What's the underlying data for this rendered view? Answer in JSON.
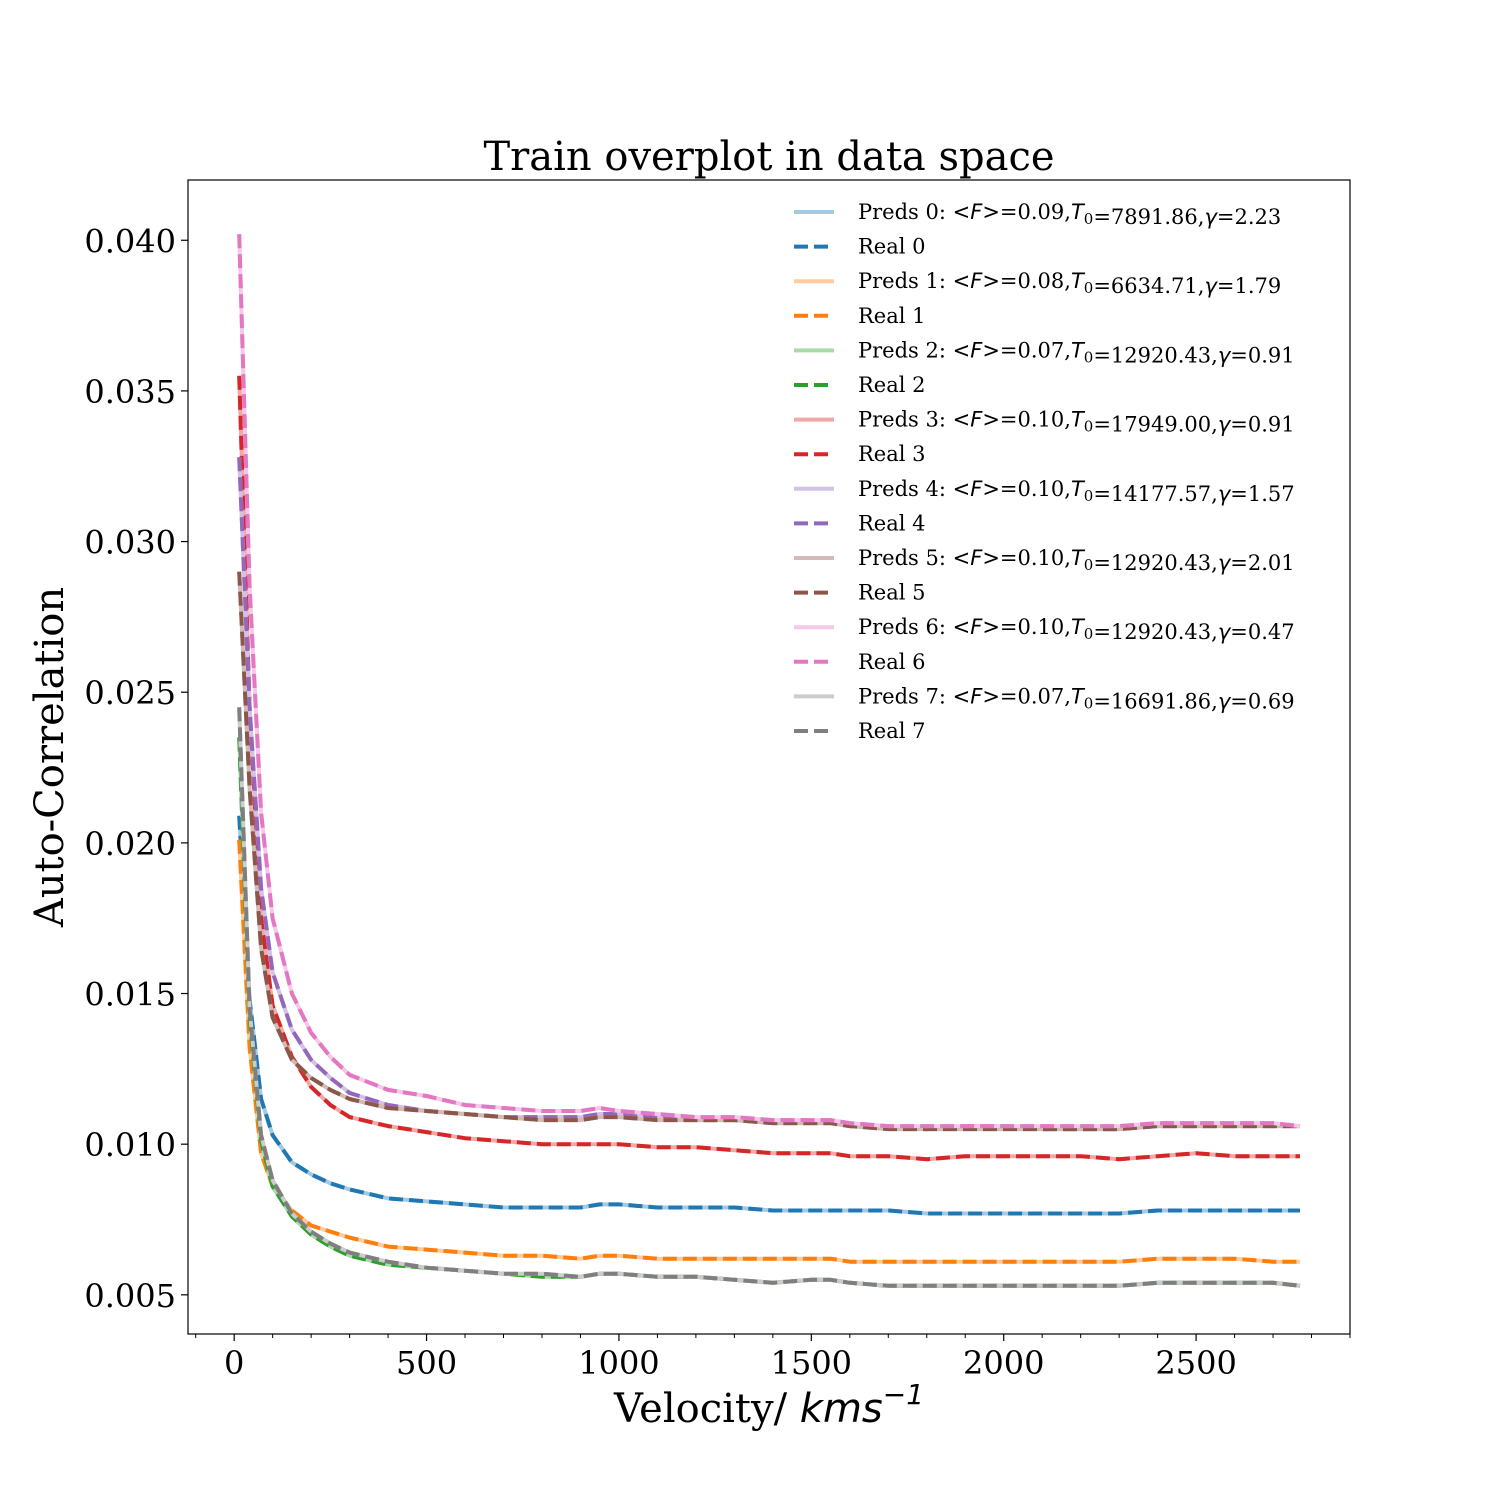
{
  "chart_data": {
    "type": "line",
    "title": "Train overplot in data space",
    "xlabel": "Velocity/ ",
    "xlabel_math": "kms",
    "xlabel_sup": "−1",
    "ylabel": "Auto-Correlation",
    "xlim": [
      -120,
      2900
    ],
    "ylim": [
      0.0037,
      0.042
    ],
    "x_ticks": [
      0,
      500,
      1000,
      1500,
      2000,
      2500
    ],
    "x_tick_labels": [
      "0",
      "500",
      "1000",
      "1500",
      "2000",
      "2500"
    ],
    "y_ticks": [
      0.005,
      0.01,
      0.015,
      0.02,
      0.025,
      0.03,
      0.035,
      0.04
    ],
    "y_tick_labels": [
      "0.005",
      "0.010",
      "0.015",
      "0.020",
      "0.025",
      "0.030",
      "0.035",
      "0.040"
    ],
    "x": [
      13,
      40,
      70,
      100,
      150,
      200,
      250,
      300,
      400,
      500,
      600,
      700,
      800,
      900,
      950,
      1000,
      1100,
      1200,
      1300,
      1400,
      1500,
      1550,
      1600,
      1700,
      1800,
      1900,
      2000,
      2100,
      2200,
      2300,
      2400,
      2500,
      2600,
      2700,
      2770
    ],
    "legend_position": "upper right",
    "grid": false,
    "series": [
      {
        "name": "Preds 0",
        "label_math": "F",
        "mean_flux": "0.09",
        "T0": "7891.86",
        "gamma": "2.23",
        "style": "pred",
        "color": "#1f77b4",
        "values": [
          0.0209,
          0.0148,
          0.0115,
          0.0103,
          0.0094,
          0.009,
          0.0087,
          0.0085,
          0.0082,
          0.0081,
          0.008,
          0.0079,
          0.0079,
          0.0079,
          0.008,
          0.008,
          0.0079,
          0.0079,
          0.0079,
          0.0078,
          0.0078,
          0.0078,
          0.0078,
          0.0078,
          0.0077,
          0.0077,
          0.0077,
          0.0077,
          0.0077,
          0.0077,
          0.0078,
          0.0078,
          0.0078,
          0.0078,
          0.0078
        ]
      },
      {
        "name": "Real 0",
        "style": "real",
        "color": "#1f77b4",
        "values": [
          0.0209,
          0.0148,
          0.0115,
          0.0103,
          0.0094,
          0.009,
          0.0087,
          0.0085,
          0.0082,
          0.0081,
          0.008,
          0.0079,
          0.0079,
          0.0079,
          0.008,
          0.008,
          0.0079,
          0.0079,
          0.0079,
          0.0078,
          0.0078,
          0.0078,
          0.0078,
          0.0078,
          0.0077,
          0.0077,
          0.0077,
          0.0077,
          0.0077,
          0.0077,
          0.0078,
          0.0078,
          0.0078,
          0.0078,
          0.0078
        ]
      },
      {
        "name": "Preds 1",
        "label_math": "F",
        "mean_flux": "0.08",
        "T0": "6634.71",
        "gamma": "1.79",
        "style": "pred",
        "color": "#ff7f0e",
        "values": [
          0.0201,
          0.0132,
          0.0097,
          0.0086,
          0.0078,
          0.0073,
          0.0071,
          0.0069,
          0.0066,
          0.0065,
          0.0064,
          0.0063,
          0.0063,
          0.0062,
          0.0063,
          0.0063,
          0.0062,
          0.0062,
          0.0062,
          0.0062,
          0.0062,
          0.0062,
          0.0061,
          0.0061,
          0.0061,
          0.0061,
          0.0061,
          0.0061,
          0.0061,
          0.0061,
          0.0062,
          0.0062,
          0.0062,
          0.0061,
          0.0061
        ]
      },
      {
        "name": "Real 1",
        "style": "real",
        "color": "#ff7f0e",
        "values": [
          0.0201,
          0.0132,
          0.0097,
          0.0086,
          0.0078,
          0.0073,
          0.0071,
          0.0069,
          0.0066,
          0.0065,
          0.0064,
          0.0063,
          0.0063,
          0.0062,
          0.0063,
          0.0063,
          0.0062,
          0.0062,
          0.0062,
          0.0062,
          0.0062,
          0.0062,
          0.0061,
          0.0061,
          0.0061,
          0.0061,
          0.0061,
          0.0061,
          0.0061,
          0.0061,
          0.0062,
          0.0062,
          0.0062,
          0.0061,
          0.0061
        ]
      },
      {
        "name": "Preds 2",
        "label_math": "F",
        "mean_flux": "0.07",
        "T0": "12920.43",
        "gamma": "0.91",
        "style": "pred",
        "color": "#2ca02c",
        "values": [
          0.0235,
          0.0142,
          0.0101,
          0.0086,
          0.0076,
          0.007,
          0.0066,
          0.0063,
          0.006,
          0.0059,
          0.0058,
          0.0057,
          0.0056,
          0.0056,
          0.0057,
          0.0057,
          0.0056,
          0.0056,
          0.0055,
          0.0054,
          0.0055,
          0.0055,
          0.0054,
          0.0053,
          0.0053,
          0.0053,
          0.0053,
          0.0053,
          0.0053,
          0.0053,
          0.0054,
          0.0054,
          0.0054,
          0.0054,
          0.0053
        ]
      },
      {
        "name": "Real 2",
        "style": "real",
        "color": "#2ca02c",
        "values": [
          0.0235,
          0.0142,
          0.0101,
          0.0086,
          0.0076,
          0.007,
          0.0066,
          0.0063,
          0.006,
          0.0059,
          0.0058,
          0.0057,
          0.0056,
          0.0056,
          0.0057,
          0.0057,
          0.0056,
          0.0056,
          0.0055,
          0.0054,
          0.0055,
          0.0055,
          0.0054,
          0.0053,
          0.0053,
          0.0053,
          0.0053,
          0.0053,
          0.0053,
          0.0053,
          0.0054,
          0.0054,
          0.0054,
          0.0054,
          0.0053
        ]
      },
      {
        "name": "Preds 3",
        "label_math": "F",
        "mean_flux": "0.10",
        "T0": "17949.00",
        "gamma": "0.91",
        "style": "pred",
        "color": "#d62728",
        "values": [
          0.0355,
          0.0245,
          0.0175,
          0.0146,
          0.0129,
          0.0119,
          0.0113,
          0.0109,
          0.0106,
          0.0104,
          0.0102,
          0.0101,
          0.01,
          0.01,
          0.01,
          0.01,
          0.0099,
          0.0099,
          0.0098,
          0.0097,
          0.0097,
          0.0097,
          0.0096,
          0.0096,
          0.0095,
          0.0096,
          0.0096,
          0.0096,
          0.0096,
          0.0095,
          0.0096,
          0.0097,
          0.0096,
          0.0096,
          0.0096
        ]
      },
      {
        "name": "Real 3",
        "style": "real",
        "color": "#d62728",
        "values": [
          0.0355,
          0.0245,
          0.0175,
          0.0146,
          0.0129,
          0.0119,
          0.0113,
          0.0109,
          0.0106,
          0.0104,
          0.0102,
          0.0101,
          0.01,
          0.01,
          0.01,
          0.01,
          0.0099,
          0.0099,
          0.0098,
          0.0097,
          0.0097,
          0.0097,
          0.0096,
          0.0096,
          0.0095,
          0.0096,
          0.0096,
          0.0096,
          0.0096,
          0.0095,
          0.0096,
          0.0097,
          0.0096,
          0.0096,
          0.0096
        ]
      },
      {
        "name": "Preds 4",
        "label_math": "F",
        "mean_flux": "0.10",
        "T0": "14177.57",
        "gamma": "1.57",
        "style": "pred",
        "color": "#9467bd",
        "values": [
          0.0328,
          0.0245,
          0.0185,
          0.0157,
          0.0138,
          0.0128,
          0.0122,
          0.0117,
          0.0113,
          0.0111,
          0.011,
          0.0109,
          0.0109,
          0.0109,
          0.011,
          0.011,
          0.0109,
          0.0108,
          0.0108,
          0.0107,
          0.0107,
          0.0107,
          0.0106,
          0.0106,
          0.0105,
          0.0106,
          0.0106,
          0.0105,
          0.0105,
          0.0105,
          0.0106,
          0.0106,
          0.0106,
          0.0106,
          0.0106
        ]
      },
      {
        "name": "Real 4",
        "style": "real",
        "color": "#9467bd",
        "values": [
          0.0328,
          0.0245,
          0.0185,
          0.0157,
          0.0138,
          0.0128,
          0.0122,
          0.0117,
          0.0113,
          0.0111,
          0.011,
          0.0109,
          0.0109,
          0.0109,
          0.011,
          0.011,
          0.0109,
          0.0108,
          0.0108,
          0.0107,
          0.0107,
          0.0107,
          0.0106,
          0.0106,
          0.0105,
          0.0106,
          0.0106,
          0.0105,
          0.0105,
          0.0105,
          0.0106,
          0.0106,
          0.0106,
          0.0106,
          0.0106
        ]
      },
      {
        "name": "Preds 5",
        "label_math": "F",
        "mean_flux": "0.10",
        "T0": "12920.43",
        "gamma": "2.01",
        "style": "pred",
        "color": "#8c564b",
        "values": [
          0.029,
          0.0218,
          0.0165,
          0.0142,
          0.0128,
          0.0122,
          0.0118,
          0.0115,
          0.0112,
          0.0111,
          0.011,
          0.0109,
          0.0108,
          0.0108,
          0.0109,
          0.0109,
          0.0108,
          0.0108,
          0.0108,
          0.0107,
          0.0107,
          0.0107,
          0.0106,
          0.0105,
          0.0105,
          0.0105,
          0.0105,
          0.0105,
          0.0105,
          0.0105,
          0.0106,
          0.0106,
          0.0106,
          0.0106,
          0.0106
        ]
      },
      {
        "name": "Real 5",
        "style": "real",
        "color": "#8c564b",
        "values": [
          0.029,
          0.0218,
          0.0165,
          0.0142,
          0.0128,
          0.0122,
          0.0118,
          0.0115,
          0.0112,
          0.0111,
          0.011,
          0.0109,
          0.0108,
          0.0108,
          0.0109,
          0.0109,
          0.0108,
          0.0108,
          0.0108,
          0.0107,
          0.0107,
          0.0107,
          0.0106,
          0.0105,
          0.0105,
          0.0105,
          0.0105,
          0.0105,
          0.0105,
          0.0105,
          0.0106,
          0.0106,
          0.0106,
          0.0106,
          0.0106
        ]
      },
      {
        "name": "Preds 6",
        "label_math": "F",
        "mean_flux": "0.10",
        "T0": "12920.43",
        "gamma": "0.47",
        "style": "pred",
        "color": "#e377c2",
        "values": [
          0.0402,
          0.0285,
          0.021,
          0.0175,
          0.015,
          0.0137,
          0.0129,
          0.0123,
          0.0118,
          0.0116,
          0.0113,
          0.0112,
          0.0111,
          0.0111,
          0.0112,
          0.0111,
          0.011,
          0.0109,
          0.0109,
          0.0108,
          0.0108,
          0.0108,
          0.0107,
          0.0106,
          0.0106,
          0.0106,
          0.0106,
          0.0106,
          0.0106,
          0.0106,
          0.0107,
          0.0107,
          0.0107,
          0.0107,
          0.0106
        ]
      },
      {
        "name": "Real 6",
        "style": "real",
        "color": "#e377c2",
        "values": [
          0.0402,
          0.0285,
          0.021,
          0.0175,
          0.015,
          0.0137,
          0.0129,
          0.0123,
          0.0118,
          0.0116,
          0.0113,
          0.0112,
          0.0111,
          0.0111,
          0.0112,
          0.0111,
          0.011,
          0.0109,
          0.0109,
          0.0108,
          0.0108,
          0.0108,
          0.0107,
          0.0106,
          0.0106,
          0.0106,
          0.0106,
          0.0106,
          0.0106,
          0.0106,
          0.0107,
          0.0107,
          0.0107,
          0.0107,
          0.0106
        ]
      },
      {
        "name": "Preds 7",
        "label_math": "F",
        "mean_flux": "0.07",
        "T0": "16691.86",
        "gamma": "0.69",
        "style": "pred",
        "color": "#7f7f7f",
        "values": [
          0.0245,
          0.0145,
          0.0103,
          0.0088,
          0.0077,
          0.0071,
          0.0067,
          0.0064,
          0.0061,
          0.0059,
          0.0058,
          0.0057,
          0.0057,
          0.0056,
          0.0057,
          0.0057,
          0.0056,
          0.0056,
          0.0055,
          0.0054,
          0.0055,
          0.0055,
          0.0054,
          0.0053,
          0.0053,
          0.0053,
          0.0053,
          0.0053,
          0.0053,
          0.0053,
          0.0054,
          0.0054,
          0.0054,
          0.0054,
          0.0053
        ]
      },
      {
        "name": "Real 7",
        "style": "real",
        "color": "#7f7f7f",
        "values": [
          0.0245,
          0.0145,
          0.0103,
          0.0088,
          0.0077,
          0.0071,
          0.0067,
          0.0064,
          0.0061,
          0.0059,
          0.0058,
          0.0057,
          0.0057,
          0.0056,
          0.0057,
          0.0057,
          0.0056,
          0.0056,
          0.0055,
          0.0054,
          0.0055,
          0.0055,
          0.0054,
          0.0053,
          0.0053,
          0.0053,
          0.0053,
          0.0053,
          0.0053,
          0.0053,
          0.0054,
          0.0054,
          0.0054,
          0.0054,
          0.0053
        ]
      }
    ]
  }
}
